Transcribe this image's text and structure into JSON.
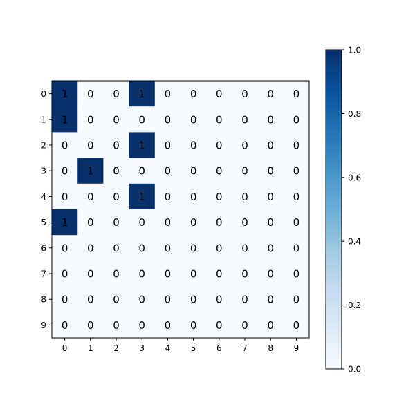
{
  "chart_data": {
    "type": "heatmap",
    "title": "",
    "xlabel": "",
    "ylabel": "",
    "x_ticks": [
      "0",
      "1",
      "2",
      "3",
      "4",
      "5",
      "6",
      "7",
      "8",
      "9"
    ],
    "y_ticks": [
      "0",
      "1",
      "2",
      "3",
      "4",
      "5",
      "6",
      "7",
      "8",
      "9"
    ],
    "values": [
      [
        1,
        0,
        0,
        1,
        0,
        0,
        0,
        0,
        0,
        0
      ],
      [
        1,
        0,
        0,
        0,
        0,
        0,
        0,
        0,
        0,
        0
      ],
      [
        0,
        0,
        0,
        1,
        0,
        0,
        0,
        0,
        0,
        0
      ],
      [
        0,
        1,
        0,
        0,
        0,
        0,
        0,
        0,
        0,
        0
      ],
      [
        0,
        0,
        0,
        1,
        0,
        0,
        0,
        0,
        0,
        0
      ],
      [
        1,
        0,
        0,
        0,
        0,
        0,
        0,
        0,
        0,
        0
      ],
      [
        0,
        0,
        0,
        0,
        0,
        0,
        0,
        0,
        0,
        0
      ],
      [
        0,
        0,
        0,
        0,
        0,
        0,
        0,
        0,
        0,
        0
      ],
      [
        0,
        0,
        0,
        0,
        0,
        0,
        0,
        0,
        0,
        0
      ],
      [
        0,
        0,
        0,
        0,
        0,
        0,
        0,
        0,
        0,
        0
      ]
    ],
    "colormap": "Blues",
    "color_low": "#f7fbff",
    "color_high": "#08306b",
    "vmin": 0,
    "vmax": 1,
    "grid": false,
    "colorbar": {
      "ticks": [
        "0.0",
        "0.2",
        "0.4",
        "0.6",
        "0.8",
        "1.0"
      ],
      "tick_values": [
        0.0,
        0.2,
        0.4,
        0.6,
        0.8,
        1.0
      ],
      "position": "right"
    }
  }
}
